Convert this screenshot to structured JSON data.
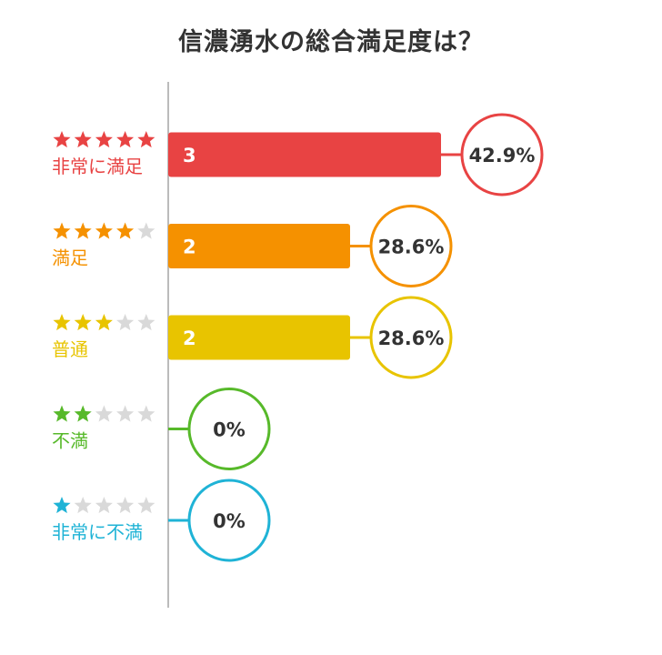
{
  "chart_data": {
    "type": "bar",
    "orientation": "horizontal",
    "title": "信濃湧水の総合満足度は？",
    "categories": [
      "非常に満足",
      "満足",
      "普通",
      "不満",
      "非常に不満"
    ],
    "stars": [
      5,
      4,
      3,
      2,
      1
    ],
    "max_stars": 5,
    "values": [
      3,
      2,
      2,
      0,
      0
    ],
    "percent_labels": [
      "42.9%",
      "28.6%",
      "28.6%",
      "0%",
      "0%"
    ],
    "colors": [
      "#e84343",
      "#f59100",
      "#e8c400",
      "#57b92a",
      "#1fb3d6"
    ],
    "inactive_star_color": "#d9d9d9",
    "axis_color": "#bbbbbb",
    "grid": false,
    "legend": "none"
  }
}
